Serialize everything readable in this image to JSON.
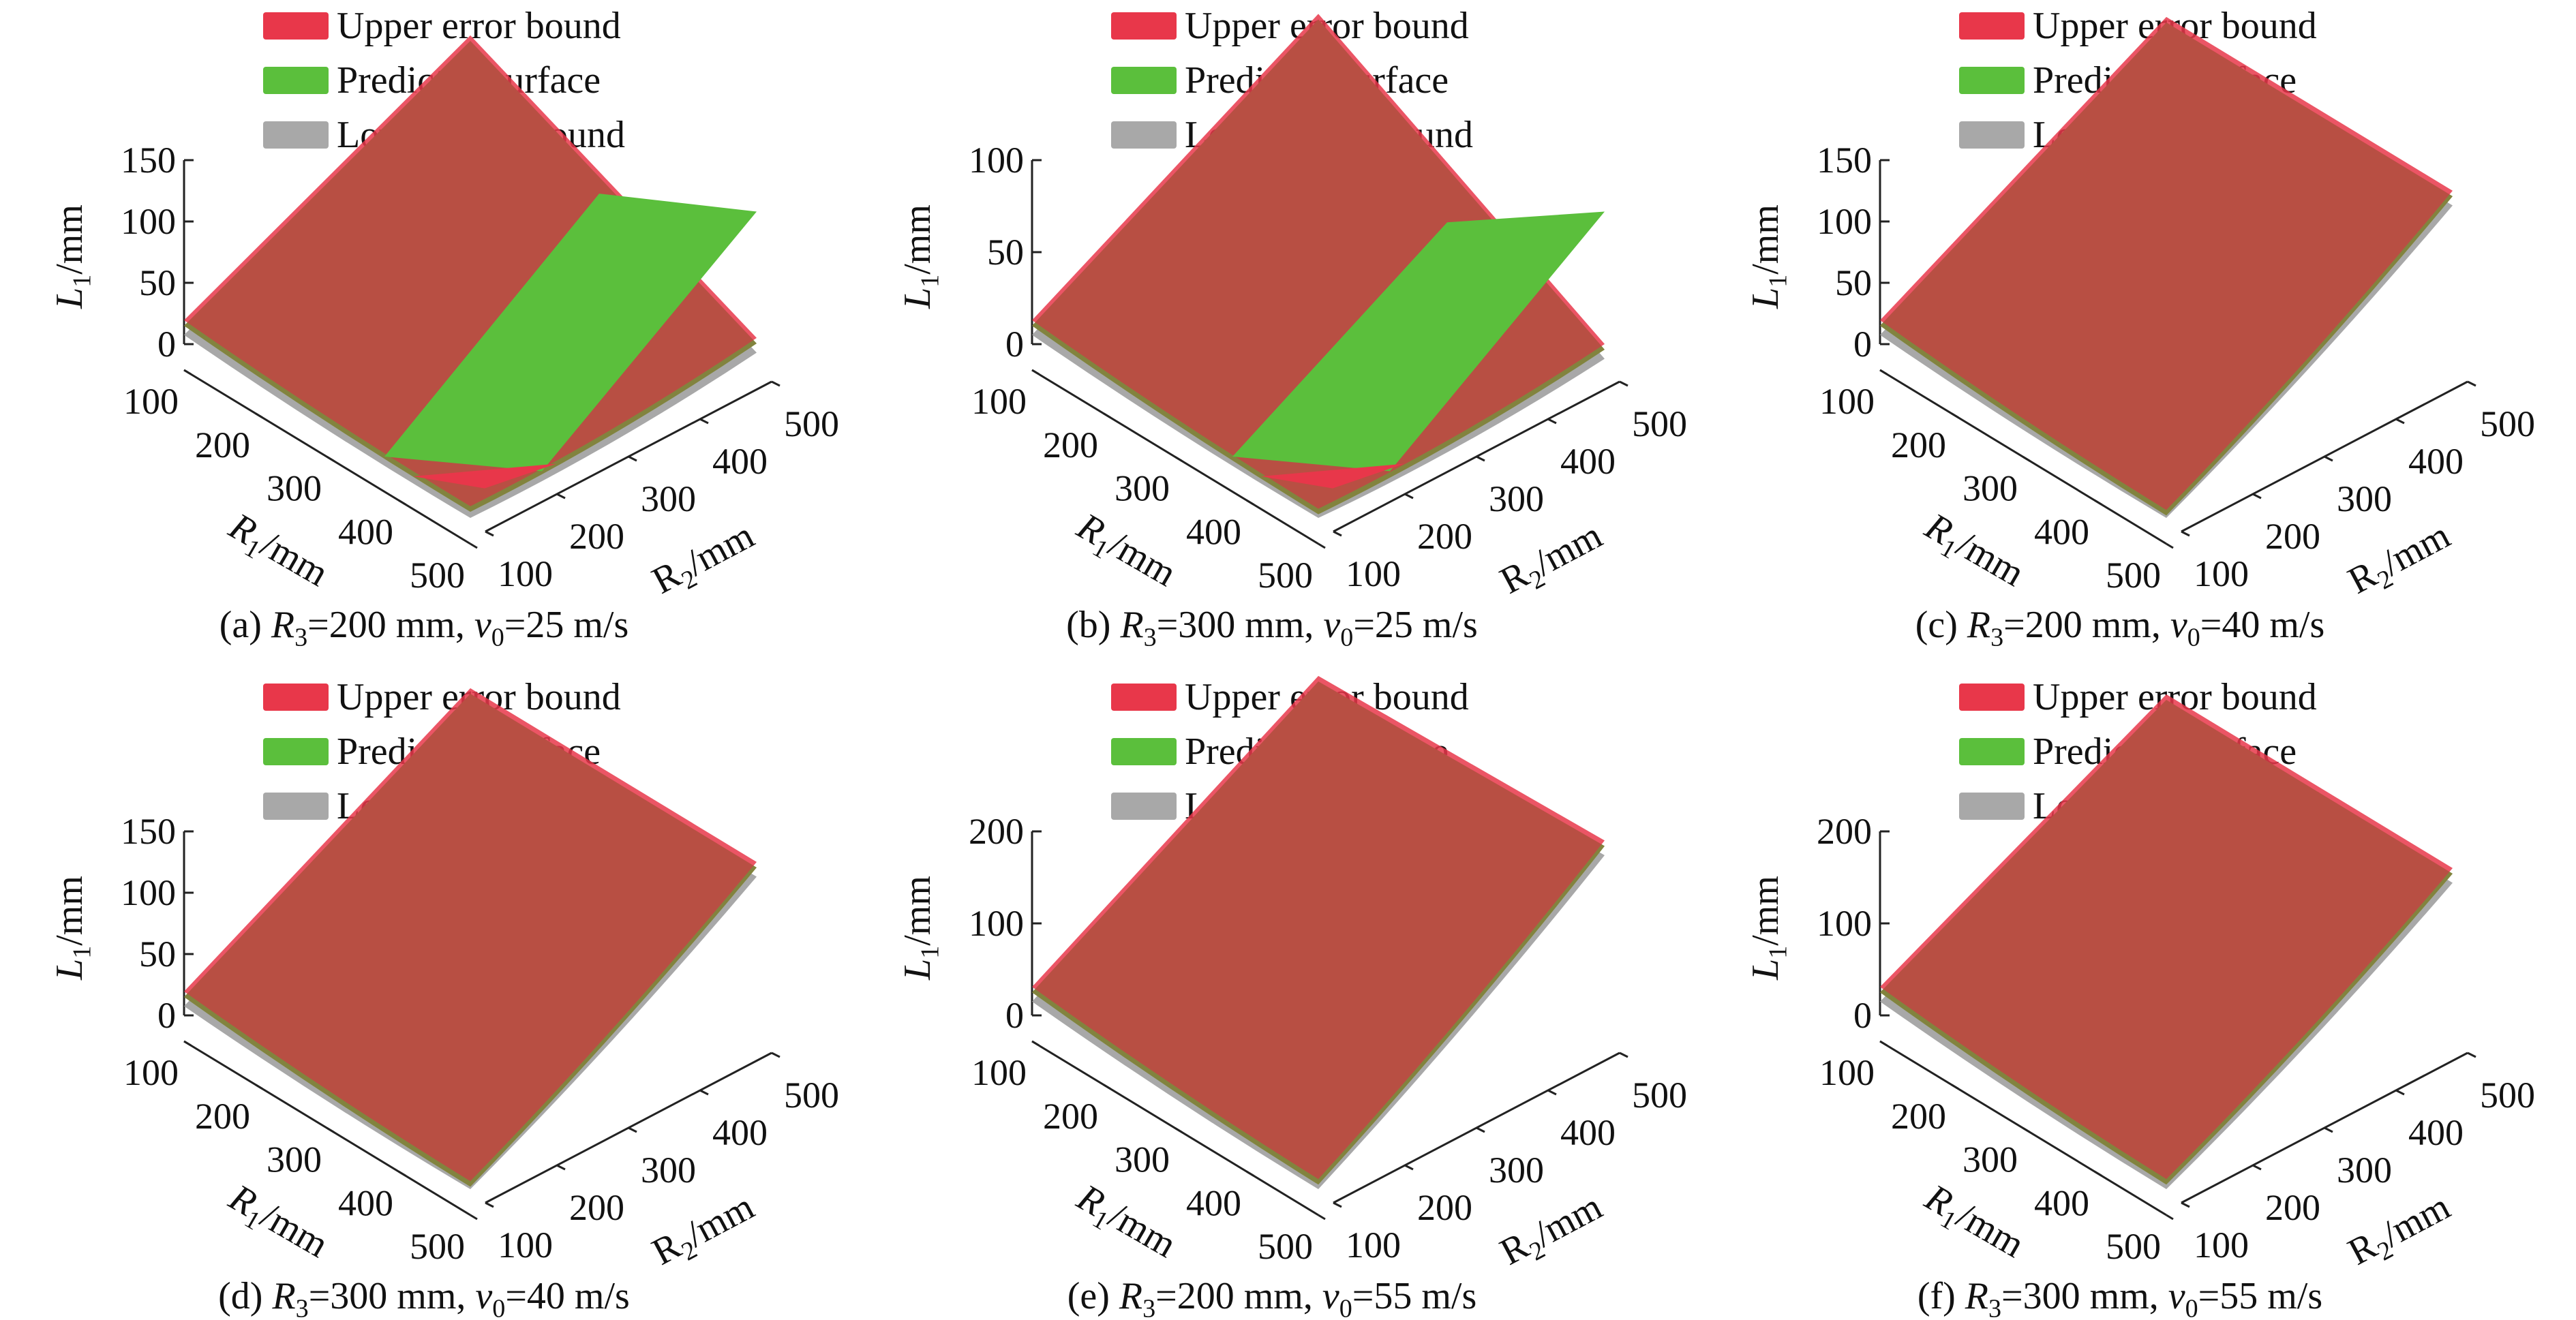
{
  "chart_data": [
    {
      "type": "surface3d",
      "panel_label": "(a)",
      "caption_params": {
        "R3": "200",
        "v0": "25"
      },
      "legend": [
        "Upper error bound",
        "Predicted surface",
        "Lower error bound"
      ],
      "zlabel": "L1/mm",
      "xlabel": "R1/mm",
      "ylabel": "R2/mm",
      "zticks": [
        "0",
        "50",
        "100",
        "150"
      ],
      "xticks": [
        "100",
        "200",
        "300",
        "400",
        "500"
      ],
      "yticks": [
        "100",
        "200",
        "300",
        "400",
        "500"
      ],
      "zlim": [
        0,
        150
      ],
      "xlim": [
        100,
        500
      ],
      "ylim": [
        100,
        500
      ],
      "corners_L1": {
        "R1_100_R2_100": 15,
        "R1_500_R2_100": 5,
        "R1_100_R2_500": 125,
        "R1_500_R2_500": 20
      },
      "note_peak": "upper bound peaks near 130 at R1=100..250, R2=500 and falls to ~10 at R1=500; predicted surface rises to ~130 at R1=500, R2=500"
    },
    {
      "type": "surface3d",
      "panel_label": "(b)",
      "caption_params": {
        "R3": "300",
        "v0": "25"
      },
      "legend": [
        "Upper error bound",
        "Predicted surface",
        "Lower error bound"
      ],
      "zlabel": "L1/mm",
      "xlabel": "R1/mm",
      "ylabel": "R2/mm",
      "zticks": [
        "0",
        "50",
        "100"
      ],
      "xticks": [
        "100",
        "200",
        "300",
        "400",
        "500"
      ],
      "yticks": [
        "100",
        "200",
        "300",
        "400",
        "500"
      ],
      "zlim": [
        0,
        100
      ],
      "xlim": [
        100,
        500
      ],
      "ylim": [
        100,
        500
      ],
      "corners_L1": {
        "R1_100_R2_100": 10,
        "R1_500_R2_100": 2,
        "R1_100_R2_500": 95,
        "R1_500_R2_500": 10
      }
    },
    {
      "type": "surface3d",
      "panel_label": "(c)",
      "caption_params": {
        "R3": "200",
        "v0": "40"
      },
      "legend": [
        "Upper error bound",
        "Predicted surface",
        "Lower error bound"
      ],
      "zlabel": "L1/mm",
      "xlabel": "R1/mm",
      "ylabel": "R2/mm",
      "zticks": [
        "0",
        "50",
        "100",
        "150"
      ],
      "xticks": [
        "100",
        "200",
        "300",
        "400",
        "500"
      ],
      "yticks": [
        "100",
        "200",
        "300",
        "400",
        "500"
      ],
      "zlim": [
        0,
        150
      ],
      "xlim": [
        100,
        500
      ],
      "ylim": [
        100,
        500
      ],
      "corners_L1": {
        "R1_100_R2_100": 15,
        "R1_500_R2_100": 2,
        "R1_100_R2_500": 140,
        "R1_500_R2_500": 140
      }
    },
    {
      "type": "surface3d",
      "panel_label": "(d)",
      "caption_params": {
        "R3": "300",
        "v0": "40"
      },
      "legend": [
        "Upper error bound",
        "Predicted surface",
        "Lower error bound"
      ],
      "zlabel": "L1/mm",
      "xlabel": "R1/mm",
      "ylabel": "R2/mm",
      "zticks": [
        "0",
        "50",
        "100",
        "150"
      ],
      "xticks": [
        "100",
        "200",
        "300",
        "400",
        "500"
      ],
      "yticks": [
        "100",
        "200",
        "300",
        "400",
        "500"
      ],
      "zlim": [
        0,
        150
      ],
      "xlim": [
        100,
        500
      ],
      "ylim": [
        100,
        500
      ],
      "corners_L1": {
        "R1_100_R2_100": 15,
        "R1_500_R2_100": 2,
        "R1_100_R2_500": 140,
        "R1_500_R2_500": 140
      }
    },
    {
      "type": "surface3d",
      "panel_label": "(e)",
      "caption_params": {
        "R3": "200",
        "v0": "55"
      },
      "legend": [
        "Upper error bound",
        "Predicted surface",
        "Lower error bound"
      ],
      "zlabel": "L1/mm",
      "xlabel": "R1/mm",
      "ylabel": "R2/mm",
      "zticks": [
        "0",
        "100",
        "200"
      ],
      "xticks": [
        "100",
        "200",
        "300",
        "400",
        "500"
      ],
      "yticks": [
        "100",
        "200",
        "300",
        "400",
        "500"
      ],
      "zlim": [
        0,
        200
      ],
      "xlim": [
        100,
        500
      ],
      "ylim": [
        100,
        500
      ],
      "corners_L1": {
        "R1_100_R2_100": 25,
        "R1_500_R2_100": 5,
        "R1_100_R2_500": 200,
        "R1_500_R2_500": 210
      }
    },
    {
      "type": "surface3d",
      "panel_label": "(f)",
      "caption_params": {
        "R3": "300",
        "v0": "55"
      },
      "legend": [
        "Upper error bound",
        "Predicted surface",
        "Lower error bound"
      ],
      "zlabel": "L1/mm",
      "xlabel": "R1/mm",
      "ylabel": "R2/mm",
      "zticks": [
        "0",
        "100",
        "200"
      ],
      "xticks": [
        "100",
        "200",
        "300",
        "400",
        "500"
      ],
      "yticks": [
        "100",
        "200",
        "300",
        "400",
        "500"
      ],
      "zlim": [
        0,
        200
      ],
      "xlim": [
        100,
        500
      ],
      "ylim": [
        100,
        500
      ],
      "corners_L1": {
        "R1_100_R2_100": 25,
        "R1_500_R2_100": 5,
        "R1_100_R2_500": 180,
        "R1_500_R2_500": 180
      }
    }
  ],
  "colors": {
    "upper": "#e8374a",
    "predicted": "#5bbf3c",
    "lower": "#a8a8a8",
    "overlap": "#a2523f",
    "axis": "#222222"
  },
  "labels": {
    "L_sym": "L",
    "L_sub": "1",
    "unit": "/mm",
    "R1_sym": "R",
    "R1_sub": "1",
    "R2_sym": "R",
    "R2_sub": "2",
    "R3_sym": "R",
    "R3_sub": "3",
    "v_sym": "v",
    "v_sub": "0",
    "mm": "mm",
    "ms": "m/s"
  }
}
